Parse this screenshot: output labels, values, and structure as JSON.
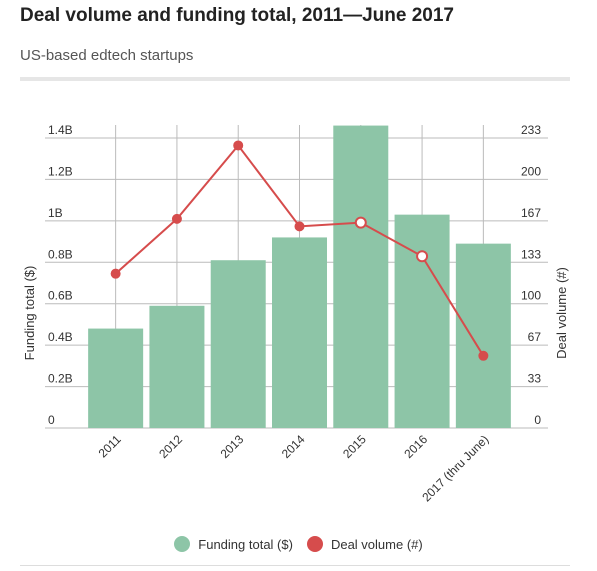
{
  "header": {
    "title": "Deal volume and funding total, 2011—June 2017",
    "subtitle": "US-based edtech startups"
  },
  "colors": {
    "bar": "#8dc5a7",
    "line": "#d64c4c",
    "grid": "#bbbbbb"
  },
  "legend": [
    {
      "label": "Funding total ($)",
      "color": "#8dc5a7"
    },
    {
      "label": "Deal volume (#)",
      "color": "#d64c4c"
    }
  ],
  "chart_data": {
    "type": "bar",
    "title": "Deal volume and funding total, 2011—June 2017",
    "subtitle": "US-based edtech startups",
    "categories": [
      "2011",
      "2012",
      "2013",
      "2014",
      "2015",
      "2016",
      "2017 (thru June)"
    ],
    "ylabel": "Funding total ($)",
    "y2label": "Deal volume (#)",
    "ylim": [
      0,
      1.4
    ],
    "y2lim": [
      0,
      233
    ],
    "y_ticks": [
      "0",
      "0.2B",
      "0.4B",
      "0.6B",
      "0.8B",
      "1B",
      "1.2B",
      "1.4B"
    ],
    "y2_ticks": [
      "0",
      "33",
      "67",
      "100",
      "133",
      "167",
      "200",
      "233"
    ],
    "grid": true,
    "legend_position": "bottom",
    "series": [
      {
        "name": "Funding total ($)",
        "type": "bar",
        "axis": "left",
        "values": [
          0.48,
          0.59,
          0.81,
          0.92,
          1.46,
          1.03,
          0.89
        ]
      },
      {
        "name": "Deal volume (#)",
        "type": "line",
        "axis": "right",
        "values": [
          124,
          168,
          227,
          162,
          165,
          138,
          58
        ]
      }
    ]
  }
}
